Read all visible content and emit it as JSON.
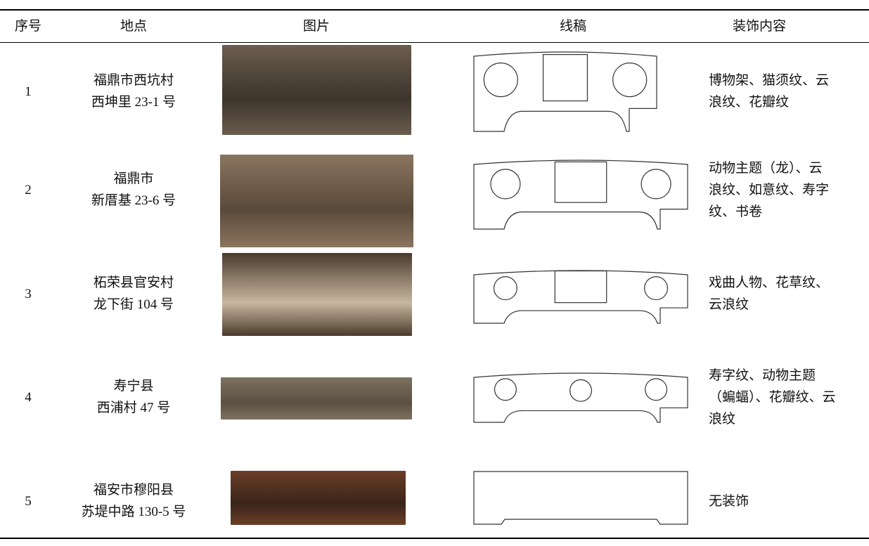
{
  "table": {
    "header": [
      "序号",
      "地点",
      "图片",
      "线稿",
      "装饰内容"
    ],
    "rows": [
      {
        "index": "1",
        "location": [
          "福鼎市西坑村",
          "西坤里 23-1 号"
        ],
        "decoration": [
          "博物架、猫须纹、云",
          "浪纹、花瓣纹"
        ]
      },
      {
        "index": "2",
        "location": [
          "福鼎市",
          "新厝基 23-6 号"
        ],
        "decoration": [
          "动物主题（龙）、云",
          "浪纹、如意纹、寿字",
          "纹、书卷"
        ]
      },
      {
        "index": "3",
        "location": [
          "柘荣县官安村",
          "龙下街 104 号"
        ],
        "decoration": [
          "戏曲人物、花草纹、",
          "云浪纹"
        ]
      },
      {
        "index": "4",
        "location": [
          "寿宁县",
          "西浦村 47 号"
        ],
        "decoration": [
          "寿字纹、动物主题",
          "（蝙蝠）、花瓣纹、云",
          "浪纹"
        ]
      },
      {
        "index": "5",
        "location": [
          "福安市穆阳县",
          "苏堤中路 130-5 号"
        ],
        "decoration": [
          "无装饰"
        ]
      }
    ]
  }
}
